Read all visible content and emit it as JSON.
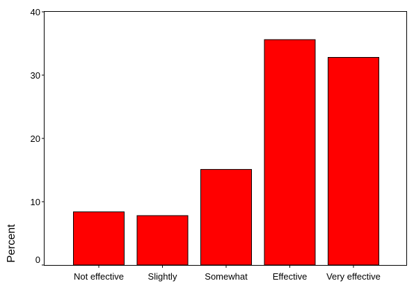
{
  "chart_data": {
    "type": "bar",
    "title": "",
    "xlabel": "",
    "ylabel": "Percent",
    "categories": [
      "Not effective",
      "Slightly",
      "Somewhat",
      "Effective",
      "Very effective"
    ],
    "values": [
      8.4,
      7.8,
      15.1,
      35.6,
      32.8
    ],
    "ylim": [
      0,
      40
    ],
    "yticks": [
      "0",
      "10",
      "20",
      "30",
      "40"
    ],
    "grid": false,
    "legend": "none",
    "bar_color": "#ff0000",
    "edge_color": "#000000"
  }
}
